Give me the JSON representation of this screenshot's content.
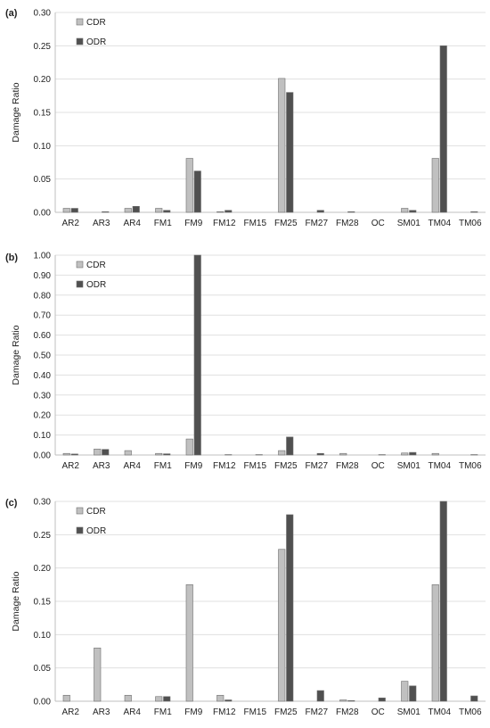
{
  "colors": {
    "cdr": "#c0c0c0",
    "odr": "#505050",
    "grid": "#e0e0e0",
    "axis": "#bfbfbf"
  },
  "chart_data": [
    {
      "type": "bar",
      "panel_label": "(a)",
      "ylabel": "Damage Ratio",
      "ylim": [
        0,
        0.3
      ],
      "yticks": [
        "0.00",
        "0.05",
        "0.10",
        "0.15",
        "0.20",
        "0.25",
        "0.30"
      ],
      "grid": true,
      "legend_position": "top-left",
      "categories": [
        "AR2",
        "AR3",
        "AR4",
        "FM1",
        "FM9",
        "FM12",
        "FM15",
        "FM25",
        "FM27",
        "FM28",
        "OC",
        "SM01",
        "TM04",
        "TM06"
      ],
      "series": [
        {
          "name": "CDR",
          "values": [
            0.006,
            0.0,
            0.006,
            0.006,
            0.081,
            0.001,
            0.0,
            0.201,
            0.0,
            0.0,
            0.0,
            0.006,
            0.081,
            0.0
          ]
        },
        {
          "name": "ODR",
          "values": [
            0.006,
            0.001,
            0.009,
            0.003,
            0.062,
            0.003,
            0.0,
            0.18,
            0.003,
            0.001,
            0.0,
            0.003,
            0.25,
            0.001
          ]
        }
      ]
    },
    {
      "type": "bar",
      "panel_label": "(b)",
      "ylabel": "Damage Ratio",
      "ylim": [
        0,
        1.0
      ],
      "yticks": [
        "0.00",
        "0.10",
        "0.20",
        "0.30",
        "0.40",
        "0.50",
        "0.60",
        "0.70",
        "0.80",
        "0.90",
        "1.00"
      ],
      "grid": true,
      "legend_position": "top-left",
      "categories": [
        "AR2",
        "AR3",
        "AR4",
        "FM1",
        "FM9",
        "FM12",
        "FM15",
        "FM25",
        "FM27",
        "FM28",
        "OC",
        "SM01",
        "TM04",
        "TM06"
      ],
      "series": [
        {
          "name": "CDR",
          "values": [
            0.008,
            0.03,
            0.022,
            0.008,
            0.08,
            0.0,
            0.0,
            0.022,
            0.0,
            0.008,
            0.0,
            0.01,
            0.008,
            0.0
          ]
        },
        {
          "name": "ODR",
          "values": [
            0.005,
            0.028,
            0.0,
            0.006,
            1.0,
            0.002,
            0.002,
            0.09,
            0.008,
            0.0,
            0.002,
            0.013,
            0.0,
            0.002
          ]
        }
      ]
    },
    {
      "type": "bar",
      "panel_label": "(c)",
      "ylabel": "Damage Ratio",
      "ylim": [
        0,
        0.3
      ],
      "yticks": [
        "0.00",
        "0.05",
        "0.10",
        "0.15",
        "0.20",
        "0.25",
        "0.30"
      ],
      "grid": true,
      "legend_position": "top-left",
      "categories": [
        "AR2",
        "AR3",
        "AR4",
        "FM1",
        "FM9",
        "FM12",
        "FM15",
        "FM25",
        "FM27",
        "FM28",
        "OC",
        "SM01",
        "TM04",
        "TM06"
      ],
      "series": [
        {
          "name": "CDR",
          "values": [
            0.009,
            0.08,
            0.009,
            0.007,
            0.175,
            0.009,
            0.0,
            0.228,
            0.0,
            0.002,
            0.0,
            0.03,
            0.175,
            0.0
          ]
        },
        {
          "name": "ODR",
          "values": [
            0.0,
            0.0,
            0.0,
            0.007,
            0.0,
            0.002,
            0.0,
            0.28,
            0.016,
            0.001,
            0.005,
            0.023,
            0.3,
            0.008
          ]
        }
      ]
    }
  ]
}
